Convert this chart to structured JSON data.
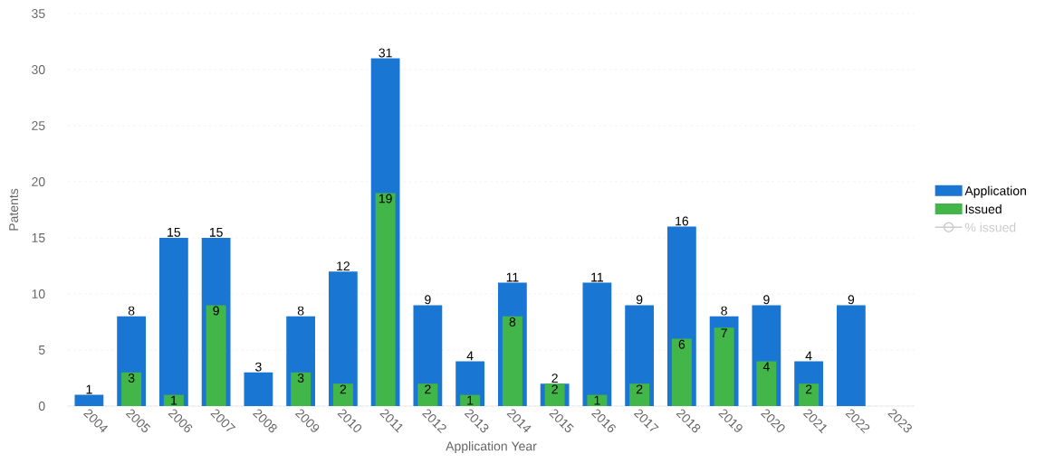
{
  "chart_data": {
    "type": "bar",
    "xlabel": "Application Year",
    "ylabel": "Patents",
    "categories": [
      "2004",
      "2005",
      "2006",
      "2007",
      "2008",
      "2009",
      "2010",
      "2011",
      "2012",
      "2013",
      "2014",
      "2015",
      "2016",
      "2017",
      "2018",
      "2019",
      "2020",
      "2021",
      "2022",
      "2023"
    ],
    "series": [
      {
        "name": "Application",
        "color": "#1976d2",
        "values": [
          1,
          8,
          15,
          15,
          3,
          8,
          12,
          31,
          9,
          4,
          11,
          2,
          11,
          9,
          16,
          8,
          9,
          4,
          9,
          null
        ]
      },
      {
        "name": "Issued",
        "color": "#43b649",
        "values": [
          null,
          3,
          1,
          9,
          null,
          3,
          2,
          19,
          2,
          1,
          8,
          2,
          1,
          2,
          6,
          7,
          4,
          2,
          null,
          null
        ]
      },
      {
        "name": "% issued",
        "type": "line",
        "marker": "circle",
        "color": "#cccccc",
        "values": [
          null,
          null,
          null,
          null,
          null,
          null,
          null,
          null,
          null,
          null,
          null,
          null,
          null,
          null,
          null,
          null,
          null,
          null,
          null,
          null
        ]
      }
    ],
    "ylim": [
      0,
      35
    ],
    "yticks": [
      0,
      5,
      10,
      15,
      20,
      25,
      30,
      35
    ],
    "grid": "y",
    "legend": "right",
    "data_labels": true
  }
}
